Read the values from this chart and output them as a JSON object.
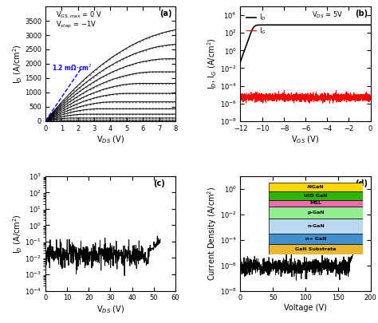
{
  "panel_a": {
    "label": "(a)",
    "xlabel": "V$_{DS}$ (V)",
    "ylabel": "I$_{D}$ (A/cm$^2$)",
    "xlim": [
      0,
      8
    ],
    "ylim": [
      0,
      4000
    ],
    "yticks": [
      0,
      500,
      1000,
      1500,
      2000,
      2500,
      3000,
      3500
    ],
    "xticks": [
      0,
      1,
      2,
      3,
      4,
      5,
      6,
      7,
      8
    ],
    "ann_vgs": "V$_{GS,max}$ = 0 V",
    "ann_vstep": "V$_{step}$ = −1V",
    "ron_label": "1.2 mΩ·cm$^2$",
    "n_curves": 12,
    "idss_max": 3250,
    "vp": 11.0
  },
  "panel_b": {
    "label": "(b)",
    "xlabel": "V$_{GS}$ (V)",
    "ylabel": "I$_{D}$, I$_{G}$ (A/cm$^2$)",
    "xlim": [
      -12,
      0
    ],
    "ylim": [
      1e-08,
      100000.0
    ],
    "xticks": [
      -12,
      -10,
      -8,
      -6,
      -4,
      -2,
      0
    ],
    "vth": -10.8,
    "id_on": 800,
    "id_off": 0.001,
    "ig_level": 5e-06,
    "ig_noise_amp": 0.5,
    "vds_label": "V$_{DS}$ = 5V",
    "id_label": "I$_D$",
    "ig_label": "I$_G$"
  },
  "panel_c": {
    "label": "(c)",
    "xlabel": "V$_{DS}$ (V)",
    "ylabel": "I$_{D}$ (A/cm$^2$)",
    "xlim": [
      0,
      60
    ],
    "ylim": [
      0.0001,
      1000.0
    ],
    "xticks": [
      0,
      10,
      20,
      30,
      40,
      50,
      60
    ],
    "noise_seed": 10,
    "base_current": 0.015,
    "noise_amp": 0.9,
    "bd_start": 48,
    "bd_rate": 0.35
  },
  "panel_d": {
    "label": "(d)",
    "xlabel": "Voltage (V)",
    "ylabel": "Current Density (A/cm$^2$)",
    "xlim": [
      0,
      200
    ],
    "ylim": [
      1e-08,
      10.0
    ],
    "xticks": [
      0,
      50,
      100,
      150,
      200
    ],
    "noise_seed": 7,
    "base_current": 8e-07,
    "noise_amp": 0.8,
    "bd_start": 168,
    "bd_rate": 0.4,
    "layers": [
      {
        "label": "AlGaN",
        "color": "#FFD700",
        "height": 1.0
      },
      {
        "label": "UID GaN",
        "color": "#2DB500",
        "height": 1.0
      },
      {
        "label": "MSL",
        "color": "#FF69B4",
        "height": 0.8
      },
      {
        "label": "p-GaN",
        "color": "#90EE90",
        "height": 1.4
      },
      {
        "label": "n-GaN",
        "color": "#B8D8F0",
        "height": 1.8
      },
      {
        "label": "n+ GaN",
        "color": "#4090D0",
        "height": 1.2
      },
      {
        "label": "GaN Substrate",
        "color": "#E8B830",
        "height": 1.2
      }
    ]
  }
}
